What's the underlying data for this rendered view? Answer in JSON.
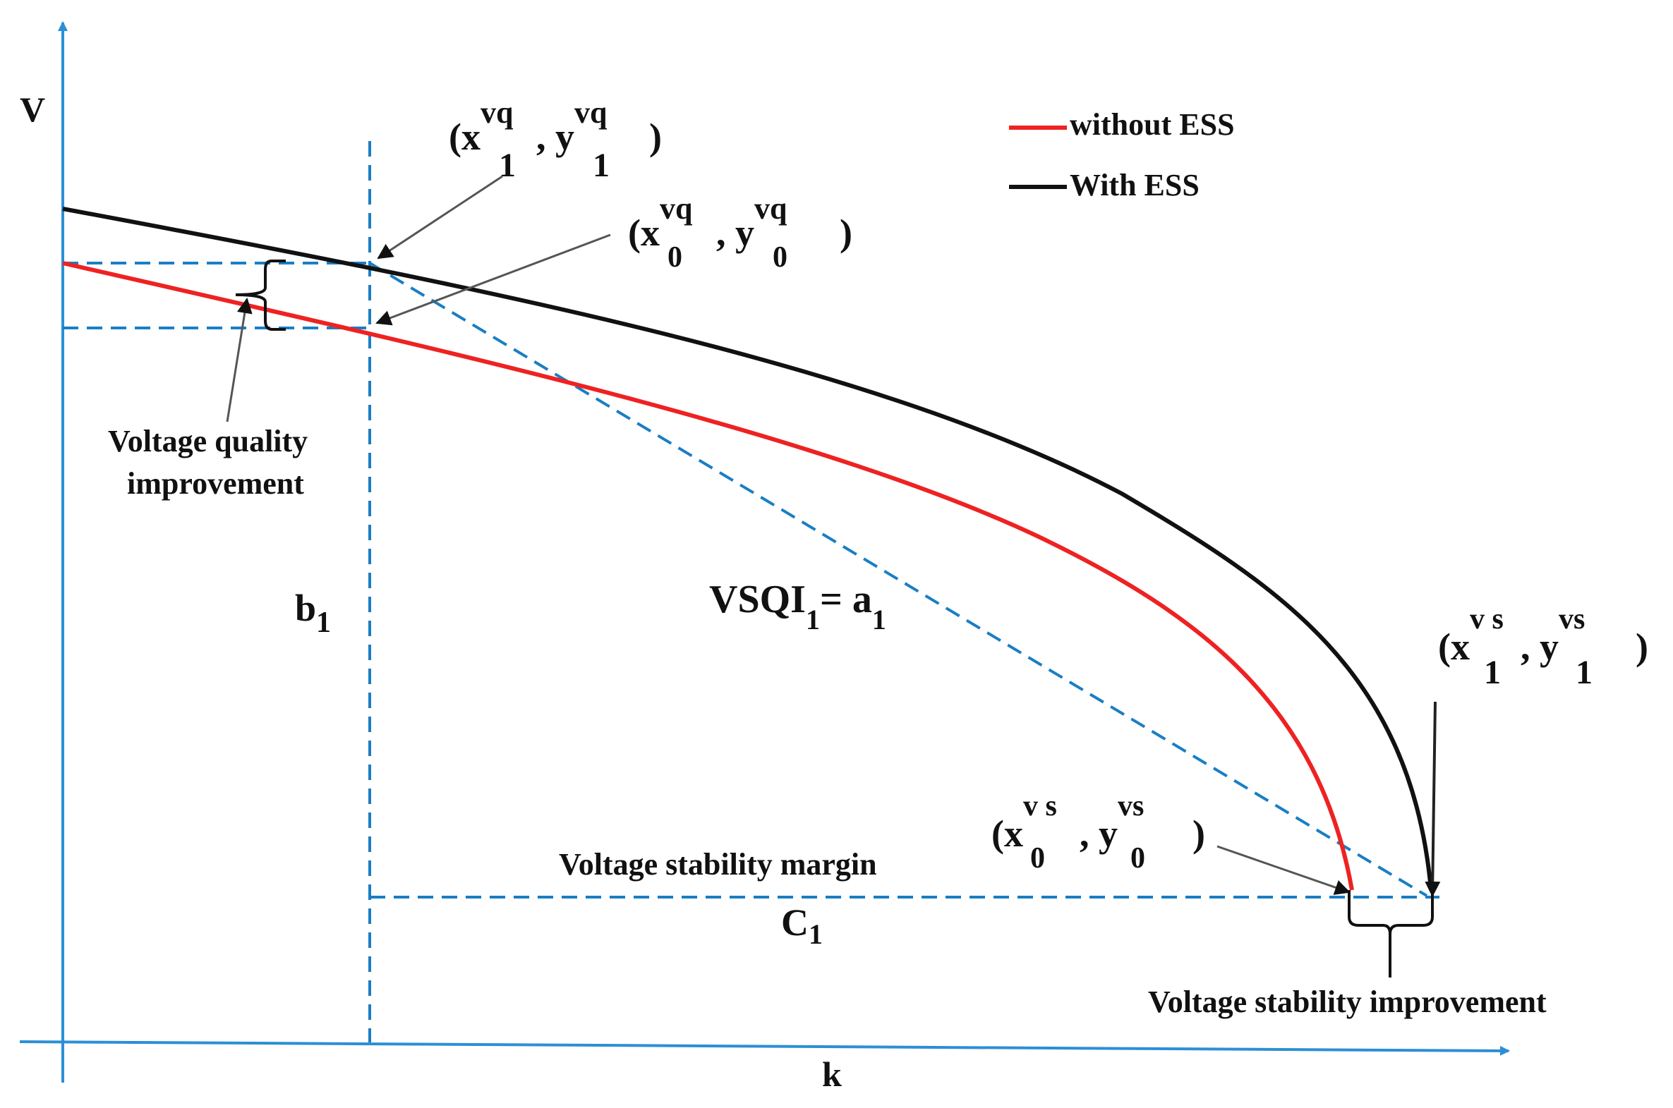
{
  "axes": {
    "y_label": "V",
    "x_label": "k"
  },
  "legend": {
    "items": [
      {
        "label": "without ESS",
        "color": "#ee2222"
      },
      {
        "label": "With ESS",
        "color": "#111111"
      }
    ]
  },
  "colors": {
    "axis": "#2b8fd6",
    "guide": "#1a7ec4",
    "curve_without_ess": "#ee2222",
    "curve_with_ess": "#111111",
    "arrow": "#555555"
  },
  "points": {
    "p1_vq": {
      "open": "(x",
      "sup1": "vq",
      "sub1": "1",
      "mid": ", y",
      "sup2": "vq",
      "sub2": "1",
      "close": ")"
    },
    "p0_vq": {
      "open": "(x",
      "sup1": "vq",
      "sub1": "0",
      "mid": ", y",
      "sup2": "vq",
      "sub2": "0",
      "close": ")"
    },
    "p1_vs": {
      "open": "(x",
      "sup1": "v s",
      "sub1": "1",
      "mid": ", y",
      "sup2": "vs",
      "sub2": "1",
      "close": ")"
    },
    "p0_vs": {
      "open": "(x",
      "sup1": "v s",
      "sub1": "0",
      "mid": ", y",
      "sup2": "vs",
      "sub2": "0",
      "close": ")"
    }
  },
  "annotations": {
    "voltage_quality_line1": "Voltage quality",
    "voltage_quality_line2": "improvement",
    "b1_main": "b",
    "b1_sub": "1",
    "vsqi_main": "VSQI",
    "vsqi_sub": "1",
    "vsqi_eq": "= a",
    "vsqi_a_sub": "1",
    "stability_margin": "Voltage stability margin",
    "c1_main": "C",
    "c1_sub": "1",
    "stability_improvement": "Voltage stability improvement"
  }
}
